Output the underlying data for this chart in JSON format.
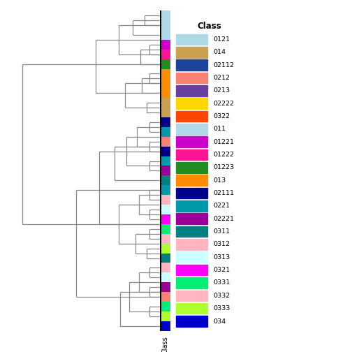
{
  "figsize": [
    5.04,
    5.04
  ],
  "dpi": 100,
  "class_labels": [
    "0121",
    "014",
    "02112",
    "0212",
    "0213",
    "02222",
    "0322",
    "011",
    "01221",
    "01222",
    "01223",
    "013",
    "02111",
    "0221",
    "02221",
    "0311",
    "0312",
    "0313",
    "0321",
    "0331",
    "0332",
    "0333",
    "034"
  ],
  "class_colors": {
    "0121": "#ADD8E6",
    "014": "#C8A050",
    "02112": "#1E4499",
    "0212": "#FA8072",
    "0213": "#6B3FA0",
    "02222": "#FFD700",
    "0322": "#FF4500",
    "011": "#B0D8E8",
    "01221": "#CC00CC",
    "01222": "#FF1493",
    "01223": "#228B22",
    "013": "#FF8C00",
    "02111": "#00008B",
    "0221": "#0099AA",
    "02221": "#990099",
    "0311": "#008080",
    "0312": "#FFB6C1",
    "0313": "#CCFFFF",
    "0321": "#FF00FF",
    "0331": "#00EE76",
    "0332": "#FFB6C1",
    "0333": "#ADFF2F",
    "034": "#0000CC"
  },
  "row_colors": [
    "#ADD8E6",
    "#ADD8E6",
    "#B0D8E8",
    "#CC00CC",
    "#FF1493",
    "#228B22",
    "#FF8C00",
    "#FF8C00",
    "#FF8C00",
    "#C8A050",
    "#C8A050",
    "#00008B",
    "#0099AA",
    "#FA8072",
    "#00008B",
    "#0099AA",
    "#990099",
    "#008080",
    "#0099AA",
    "#FFB6C1",
    "#CCFFFF",
    "#FF00FF",
    "#00EE76",
    "#FFB6C1",
    "#ADFF2F",
    "#008080",
    "#FFB6C1",
    "#CCFFFF",
    "#990099",
    "#FA8072",
    "#00EE76",
    "#ADFF2F",
    "#0000CC"
  ],
  "dendro_color": "#888888",
  "bg_color": "#FFFFFF",
  "xlabel": "Class"
}
